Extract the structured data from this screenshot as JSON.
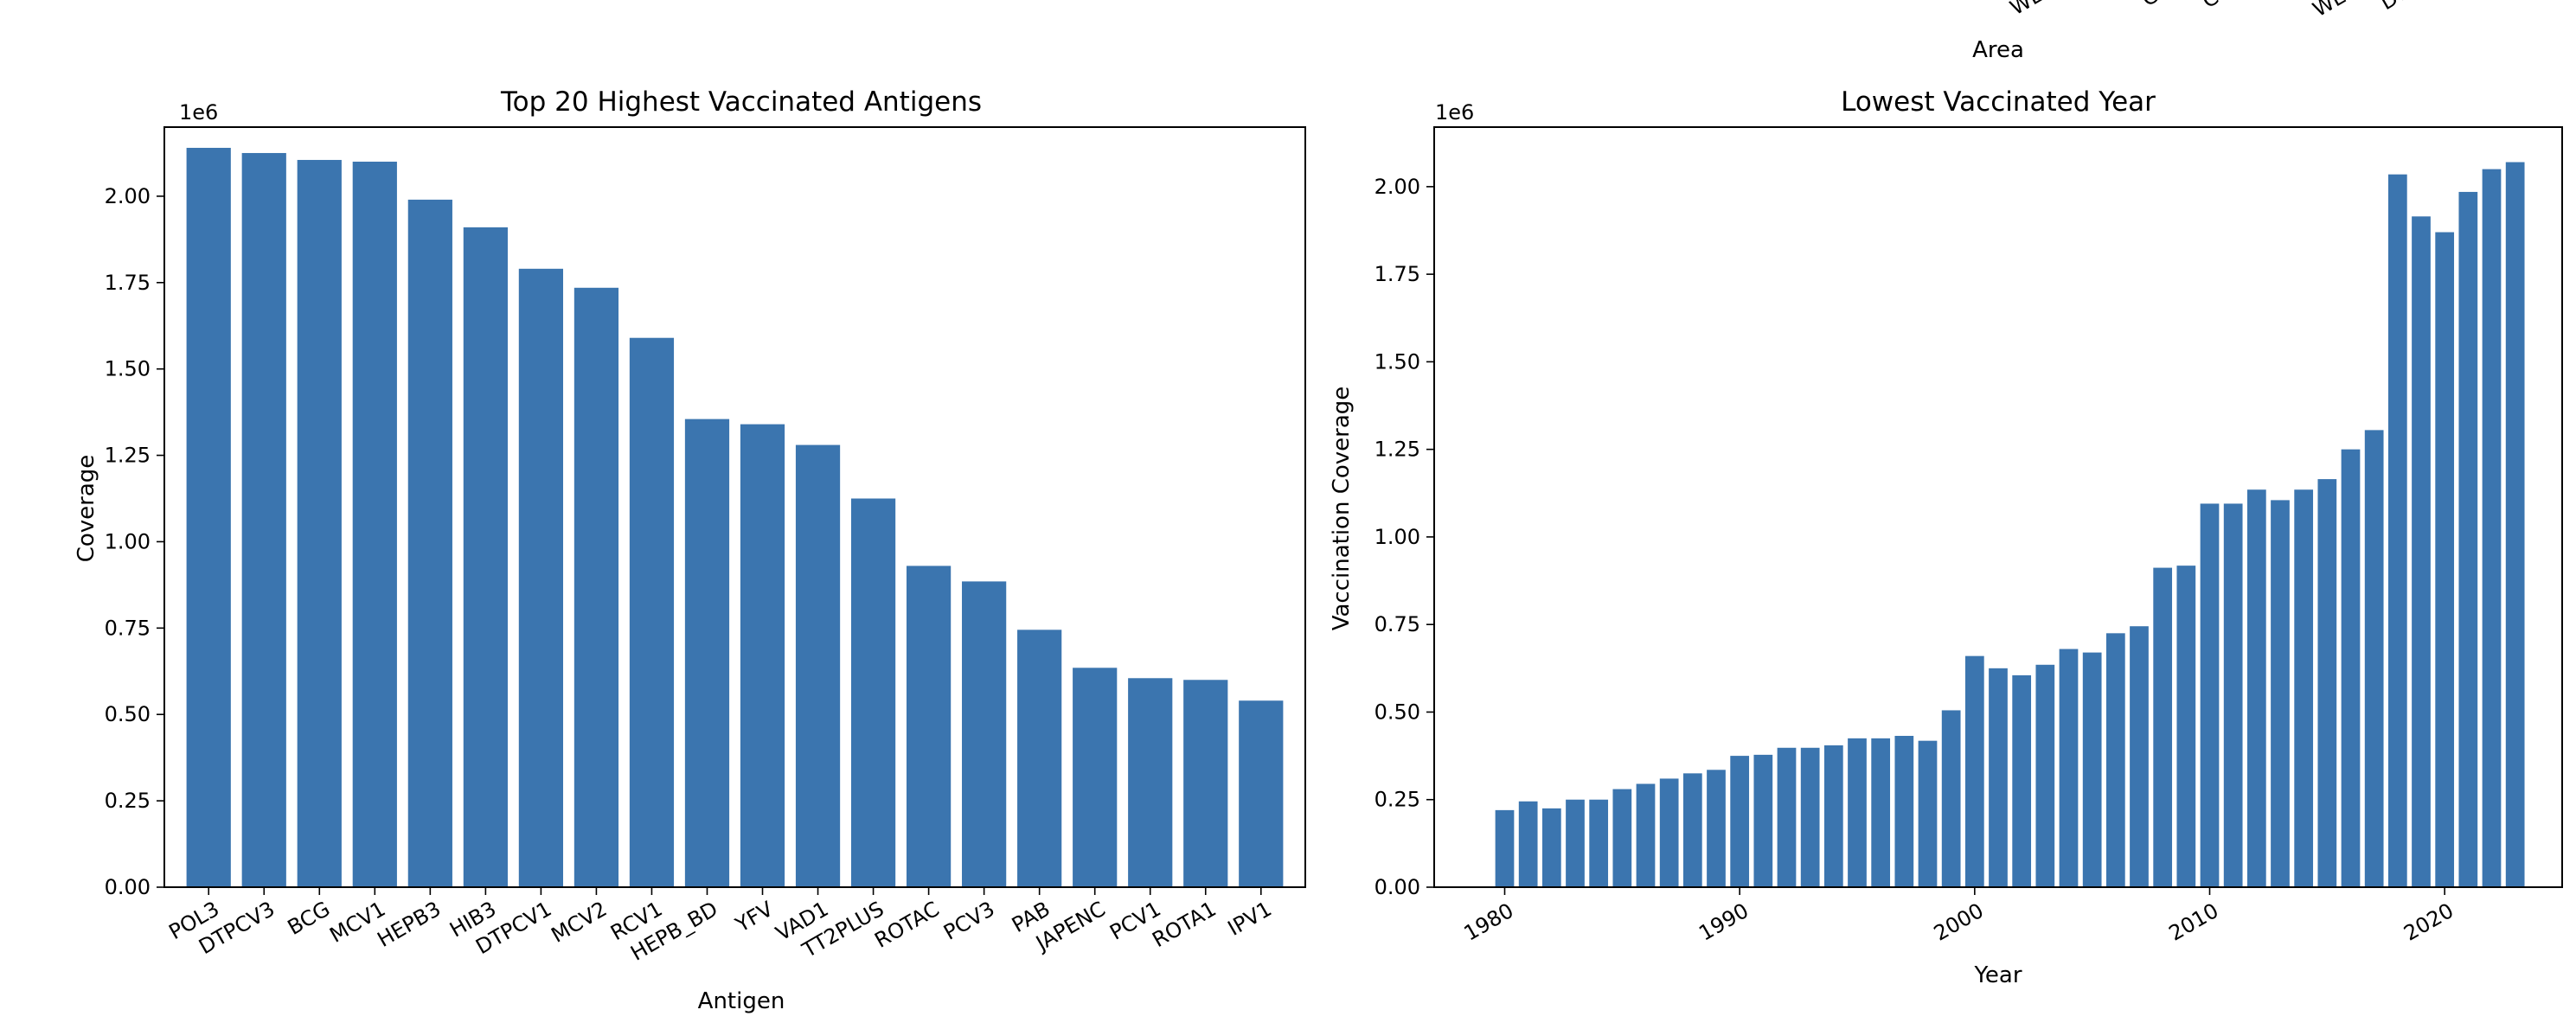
{
  "colors": {
    "bar": "#3b75af",
    "text": "#000000",
    "axis": "#000000"
  },
  "top_fragment": {
    "xlabel": "Area",
    "tick_labels": [
      "WE",
      "Ca",
      "Ca",
      "WE",
      "De"
    ]
  },
  "chart_data": [
    {
      "type": "bar",
      "title": "Top 20 Highest Vaccinated Antigens",
      "xlabel": "Antigen",
      "ylabel": "Coverage",
      "y_offset_label": "1e6",
      "ylim": [
        0,
        2200000
      ],
      "yticks": [
        0,
        250000,
        500000,
        750000,
        1000000,
        1250000,
        1500000,
        1750000,
        2000000
      ],
      "ytick_labels": [
        "0.00",
        "0.25",
        "0.50",
        "0.75",
        "1.00",
        "1.25",
        "1.50",
        "1.75",
        "2.00"
      ],
      "categories": [
        "POL3",
        "DTPCV3",
        "BCG",
        "MCV1",
        "HEPB3",
        "HIB3",
        "DTPCV1",
        "MCV2",
        "RCV1",
        "HEPB_BD",
        "YFV",
        "VAD1",
        "TT2PLUS",
        "ROTAC",
        "PCV3",
        "PAB",
        "JAPENC",
        "PCV1",
        "ROTA1",
        "IPV1"
      ],
      "values": [
        2140000,
        2125000,
        2105000,
        2100000,
        1990000,
        1910000,
        1790000,
        1735000,
        1590000,
        1355000,
        1340000,
        1280000,
        1125000,
        930000,
        885000,
        745000,
        635000,
        605000,
        600000,
        540000
      ]
    },
    {
      "type": "bar",
      "title": "Lowest Vaccinated Year",
      "xlabel": "Year",
      "ylabel": "Vaccination Coverage",
      "y_offset_label": "1e6",
      "ylim": [
        0,
        2170000
      ],
      "xlim": [
        1977.0,
        2025.0
      ],
      "yticks": [
        0,
        250000,
        500000,
        750000,
        1000000,
        1250000,
        1500000,
        1750000,
        2000000
      ],
      "ytick_labels": [
        "0.00",
        "0.25",
        "0.50",
        "0.75",
        "1.00",
        "1.25",
        "1.50",
        "1.75",
        "2.00"
      ],
      "xticks": [
        1980,
        1990,
        2000,
        2010,
        2020
      ],
      "xtick_labels": [
        "1980",
        "1990",
        "2000",
        "2010",
        "2020"
      ],
      "x": [
        1980,
        1981,
        1982,
        1983,
        1984,
        1985,
        1986,
        1987,
        1988,
        1989,
        1990,
        1991,
        1992,
        1993,
        1994,
        1995,
        1996,
        1997,
        1998,
        1999,
        2000,
        2001,
        2002,
        2003,
        2004,
        2005,
        2006,
        2007,
        2008,
        2009,
        2010,
        2011,
        2012,
        2013,
        2014,
        2015,
        2016,
        2017,
        2018,
        2019,
        2020,
        2021,
        2022,
        2023
      ],
      "values": [
        220000,
        245000,
        225000,
        250000,
        250000,
        280000,
        295000,
        310000,
        325000,
        335000,
        375000,
        378000,
        398000,
        398000,
        405000,
        425000,
        425000,
        432000,
        418000,
        505000,
        660000,
        625000,
        605000,
        635000,
        680000,
        670000,
        725000,
        745000,
        912000,
        918000,
        1095000,
        1095000,
        1135000,
        1105000,
        1135000,
        1165000,
        1250000,
        1305000,
        2035000,
        1915000,
        1870000,
        1985000,
        2050000,
        2070000
      ]
    }
  ]
}
